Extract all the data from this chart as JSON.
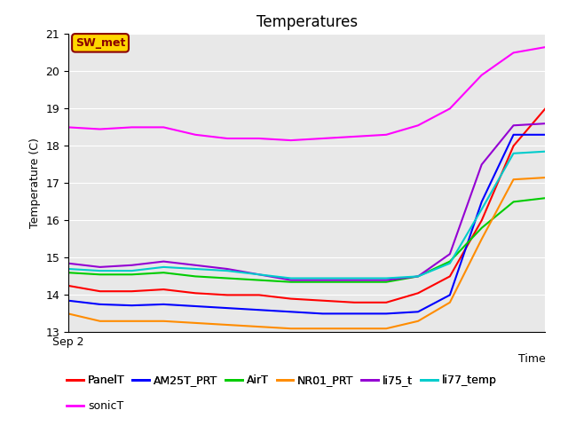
{
  "title": "Temperatures",
  "xlabel": "Time",
  "ylabel": "Temperature (C)",
  "xlim_label": "Sep 2",
  "ylim": [
    13.0,
    21.0
  ],
  "yticks": [
    13.0,
    14.0,
    15.0,
    16.0,
    17.0,
    18.0,
    19.0,
    20.0,
    21.0
  ],
  "annotation": "SW_met",
  "annotation_color": "#8B0000",
  "annotation_bg": "#FFD700",
  "bg_color": "#E8E8E8",
  "fig_bg_color": "#FFFFFF",
  "series": {
    "PanelT": {
      "color": "#FF0000",
      "y": [
        14.25,
        14.1,
        14.1,
        14.15,
        14.05,
        14.0,
        14.0,
        13.9,
        13.85,
        13.8,
        13.8,
        14.05,
        14.5,
        16.0,
        18.0,
        19.0
      ]
    },
    "AM25T_PRT": {
      "color": "#0000FF",
      "y": [
        13.85,
        13.75,
        13.72,
        13.75,
        13.7,
        13.65,
        13.6,
        13.55,
        13.5,
        13.5,
        13.5,
        13.55,
        14.0,
        16.5,
        18.3,
        18.3
      ]
    },
    "AirT": {
      "color": "#00CC00",
      "y": [
        14.6,
        14.55,
        14.55,
        14.6,
        14.5,
        14.45,
        14.4,
        14.35,
        14.35,
        14.35,
        14.35,
        14.5,
        14.9,
        15.8,
        16.5,
        16.6
      ]
    },
    "NR01_PRT": {
      "color": "#FF8C00",
      "y": [
        13.5,
        13.3,
        13.3,
        13.3,
        13.25,
        13.2,
        13.15,
        13.1,
        13.1,
        13.1,
        13.1,
        13.3,
        13.8,
        15.5,
        17.1,
        17.15
      ]
    },
    "li75_t": {
      "color": "#9400D3",
      "y": [
        14.85,
        14.75,
        14.8,
        14.9,
        14.8,
        14.7,
        14.55,
        14.4,
        14.4,
        14.4,
        14.4,
        14.5,
        15.1,
        17.5,
        18.55,
        18.6
      ]
    },
    "li77_temp": {
      "color": "#00CCCC",
      "y": [
        14.7,
        14.65,
        14.65,
        14.75,
        14.7,
        14.65,
        14.55,
        14.45,
        14.45,
        14.45,
        14.45,
        14.5,
        14.85,
        16.3,
        17.8,
        17.85
      ]
    },
    "sonicT": {
      "color": "#FF00FF",
      "y": [
        18.5,
        18.45,
        18.5,
        18.5,
        18.3,
        18.2,
        18.2,
        18.15,
        18.2,
        18.25,
        18.3,
        18.55,
        19.0,
        19.9,
        20.5,
        20.65
      ]
    }
  },
  "x": [
    0,
    1,
    2,
    3,
    4,
    5,
    6,
    7,
    8,
    9,
    10,
    11,
    12,
    13,
    14,
    15
  ],
  "legend_row1": [
    "PanelT",
    "AM25T_PRT",
    "AirT",
    "NR01_PRT",
    "li75_t",
    "li77_temp"
  ],
  "legend_row2": [
    "sonicT"
  ],
  "title_fontsize": 12,
  "axis_fontsize": 9,
  "legend_fontsize": 9
}
